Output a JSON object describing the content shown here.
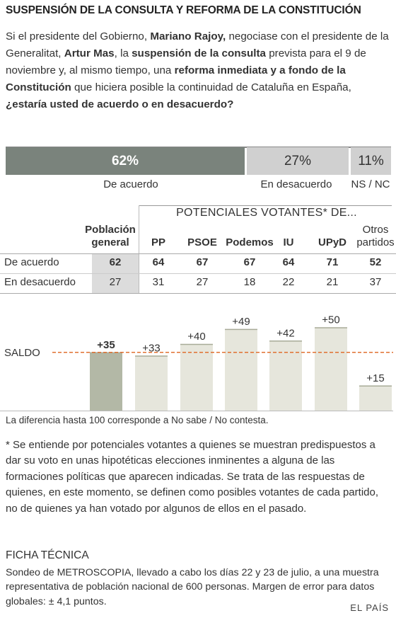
{
  "title": "SUSPENSIÓN DE LA CONSULTA Y REFORMA DE LA CONSTITUCIÓN",
  "question": [
    {
      "t": "Si el presidente del Gobierno, ",
      "b": false
    },
    {
      "t": "Mariano Rajoy,",
      "b": true
    },
    {
      "t": " negociase con el presidente de la Generalitat, ",
      "b": false
    },
    {
      "t": "Artur Mas",
      "b": true
    },
    {
      "t": ", la ",
      "b": false
    },
    {
      "t": "suspensión de la consulta",
      "b": true
    },
    {
      "t": " prevista para el 9 de noviembre y, al mismo tiempo, una ",
      "b": false
    },
    {
      "t": "reforma inmediata y a fondo de la Constitución",
      "b": true
    },
    {
      "t": " que hiciera posible la continuidad de Cataluña en España, ",
      "b": false
    },
    {
      "t": "¿estaría usted de acuerdo o en desacuerdo?",
      "b": true
    }
  ],
  "top_results": [
    {
      "value_label": "62%",
      "label": "De acuerdo",
      "value": 62,
      "color": "#7a837c",
      "text_color": "#ffffff"
    },
    {
      "value_label": "27%",
      "label": "En desacuerdo",
      "value": 27,
      "color": "#d0d0d0",
      "text_color": "#333333"
    },
    {
      "value_label": "11%",
      "label": "NS / NC",
      "value": 11,
      "color": "#d0d0d0",
      "text_color": "#333333"
    }
  ],
  "table": {
    "group_header": "POTENCIALES VOTANTES*  DE...",
    "columns": [
      "Población general",
      "PP",
      "PSOE",
      "Podemos",
      "IU",
      "UPyD",
      "Otros partidos"
    ],
    "rows": [
      {
        "label": "De acuerdo",
        "values": [
          "62",
          "64",
          "67",
          "67",
          "64",
          "71",
          "52"
        ]
      },
      {
        "label": "En desacuerdo",
        "values": [
          "27",
          "31",
          "27",
          "18",
          "22",
          "21",
          "37"
        ]
      }
    ]
  },
  "chart_data": {
    "type": "bar",
    "categories": [
      "Población general",
      "PP",
      "PSOE",
      "Podemos",
      "IU",
      "UPyD",
      "Otros partidos"
    ],
    "values": [
      35,
      33,
      40,
      49,
      42,
      50,
      15
    ],
    "labels": [
      "+35",
      "+33",
      "+40",
      "+49",
      "+42",
      "+50",
      "+15"
    ],
    "reference_line": {
      "label": "SALDO",
      "value": 35
    },
    "colors": {
      "highlight": "#b3b8a6",
      "bar": "#e6e6dc",
      "line": "#e07030"
    }
  },
  "note": "La diferencia hasta 100 corresponde a No sabe / No contesta.",
  "footnote": "* Se entiende por potenciales votantes a quienes se muestran predispuestos a dar su voto en unas hipotéticas elecciones inminentes a alguna de las formaciones políticas que aparecen indicadas. Se trata de las respuestas de quienes, en este momento, se definen como posibles votantes de cada partido, no de quienes ya han votado por algunos de ellos en el pasado.",
  "ficha_title": "FICHA TÉCNICA",
  "ficha": "Sondeo de METROSCOPIA, llevado a cabo los días 22 y 23 de julio, a una muestra representativa de población nacional de 600 personas. Margen de error para datos globales: ± 4,1 puntos.",
  "brand": "EL PAÍS"
}
